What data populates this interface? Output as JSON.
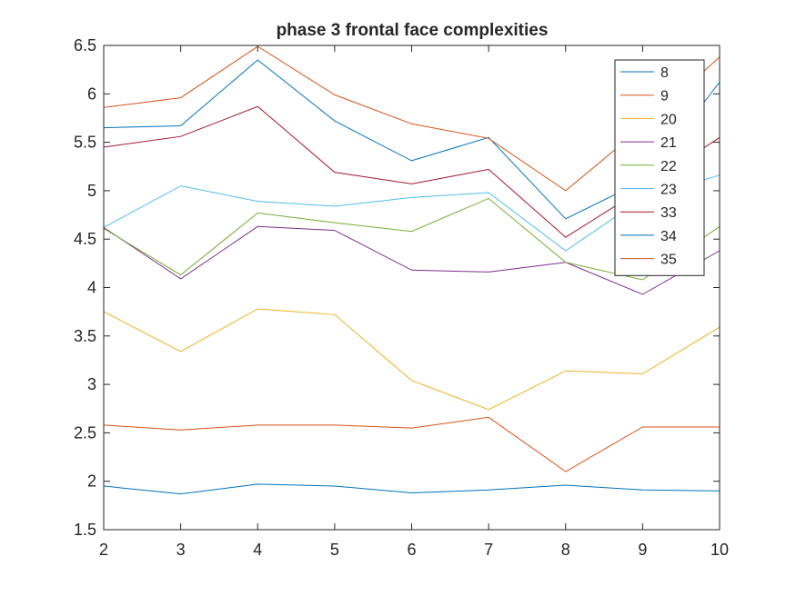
{
  "chart_data": {
    "type": "line",
    "title": "phase 3 frontal face complexities",
    "xlabel": "",
    "ylabel": "",
    "x": [
      2,
      3,
      4,
      5,
      6,
      7,
      8,
      9,
      10
    ],
    "xlim": [
      2,
      10
    ],
    "ylim": [
      1.5,
      6.5
    ],
    "xticks": [
      "2",
      "3",
      "4",
      "5",
      "6",
      "7",
      "8",
      "9",
      "10"
    ],
    "yticks": [
      "1.5",
      "2",
      "2.5",
      "3",
      "3.5",
      "4",
      "4.5",
      "5",
      "5.5",
      "6",
      "6.5"
    ],
    "grid": false,
    "legend_position": "top-right",
    "series": [
      {
        "name": "8",
        "color": "#0072BD",
        "values": [
          1.95,
          1.87,
          1.97,
          1.95,
          1.88,
          1.91,
          1.96,
          1.91,
          1.9
        ]
      },
      {
        "name": "9",
        "color": "#D95319",
        "values": [
          2.58,
          2.53,
          2.58,
          2.58,
          2.55,
          2.66,
          2.1,
          2.56,
          2.56
        ]
      },
      {
        "name": "20",
        "color": "#EDB120",
        "values": [
          3.75,
          3.34,
          3.78,
          3.72,
          3.04,
          2.74,
          3.14,
          3.11,
          3.59
        ]
      },
      {
        "name": "21",
        "color": "#7E2F8E",
        "values": [
          4.62,
          4.09,
          4.63,
          4.59,
          4.18,
          4.16,
          4.26,
          3.93,
          4.38
        ]
      },
      {
        "name": "22",
        "color": "#77AC30",
        "values": [
          4.61,
          4.13,
          4.77,
          4.67,
          4.58,
          4.92,
          4.26,
          4.08,
          4.63
        ]
      },
      {
        "name": "23",
        "color": "#4DBEEE",
        "values": [
          4.62,
          5.05,
          4.89,
          4.84,
          4.93,
          4.98,
          4.38,
          4.92,
          5.16
        ]
      },
      {
        "name": "33",
        "color": "#A2142F",
        "values": [
          5.45,
          5.56,
          5.87,
          5.19,
          5.07,
          5.22,
          4.52,
          5.02,
          5.55
        ]
      },
      {
        "name": "34",
        "color": "#0072BD",
        "values": [
          5.65,
          5.67,
          6.35,
          5.72,
          5.31,
          5.55,
          4.71,
          5.1,
          6.12
        ]
      },
      {
        "name": "35",
        "color": "#D95319",
        "values": [
          5.86,
          5.96,
          6.49,
          5.99,
          5.69,
          5.54,
          5.0,
          5.66,
          6.38
        ]
      }
    ]
  }
}
